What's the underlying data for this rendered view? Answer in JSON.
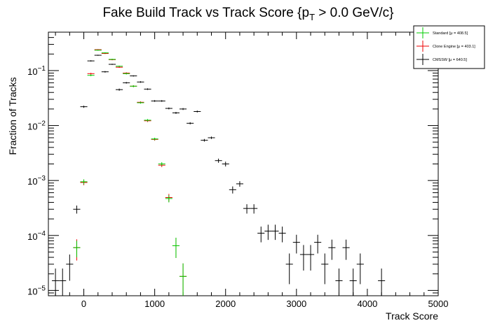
{
  "chart_data": {
    "type": "scatter",
    "title_main": "Fake Build Track vs Track Score {p",
    "title_sub": "T",
    "title_tail": " > 0.0 GeV/c}",
    "xlabel": "Track Score",
    "ylabel": "Fraction of Tracks",
    "xlim": [
      -500,
      5000
    ],
    "ylim": [
      8e-06,
      0.5
    ],
    "yscale": "log",
    "x_ticks": [
      0,
      1000,
      2000,
      3000,
      4000,
      5000
    ],
    "x_tick_labels": [
      "0",
      "1000",
      "2000",
      "3000",
      "4000",
      "5000"
    ],
    "y_ticks": [
      1e-05,
      0.0001,
      0.001,
      0.01,
      0.1
    ],
    "y_tick_labels": [
      [
        "10",
        "−5"
      ],
      [
        "10",
        "−4"
      ],
      [
        "10",
        "−3"
      ],
      [
        "10",
        "−2"
      ],
      [
        "10",
        "−1"
      ]
    ],
    "bin_width": 100,
    "grid": false,
    "legend_position": "top-right",
    "series": [
      {
        "name": "Standard",
        "legend_label": "Standard  [μ = 408.5]",
        "color": "#00cc00",
        "points": [
          [
            -100,
            6e-05,
            2e-05
          ],
          [
            0,
            0.00095,
            0.0001
          ],
          [
            100,
            0.082,
            0.003
          ],
          [
            200,
            0.235,
            0.005
          ],
          [
            300,
            0.21,
            0.005
          ],
          [
            400,
            0.16,
            0.004
          ],
          [
            500,
            0.12,
            0.003
          ],
          [
            600,
            0.088,
            0.003
          ],
          [
            700,
            0.052,
            0.002
          ],
          [
            800,
            0.026,
            0.001
          ],
          [
            900,
            0.0125,
            0.0006
          ],
          [
            1000,
            0.0057,
            0.0003
          ],
          [
            1100,
            0.002,
            0.00015
          ],
          [
            1200,
            0.00047,
            7e-05
          ],
          [
            1300,
            6.5e-05,
            2.6e-05
          ],
          [
            1400,
            1.8e-05,
            1.3e-05
          ]
        ]
      },
      {
        "name": "Clone Engine",
        "legend_label": "Clone Engine  [μ = 403.1]",
        "color": "#ee0000",
        "points": [
          [
            -100,
            6e-05,
            2.5e-05
          ],
          [
            0,
            0.00092,
            0.0001
          ],
          [
            100,
            0.088,
            0.003
          ],
          [
            200,
            0.24,
            0.005
          ],
          [
            300,
            0.205,
            0.005
          ],
          [
            400,
            0.158,
            0.004
          ],
          [
            500,
            0.115,
            0.003
          ],
          [
            600,
            0.09,
            0.003
          ],
          [
            700,
            0.052,
            0.002
          ],
          [
            800,
            0.0265,
            0.001
          ],
          [
            900,
            0.0122,
            0.0006
          ],
          [
            1000,
            0.0056,
            0.0003
          ],
          [
            1100,
            0.0019,
            0.00015
          ],
          [
            1200,
            0.00049,
            8e-05
          ],
          [
            1300,
            6.5e-05,
            2.6e-05
          ],
          [
            1400,
            1.8e-05,
            1.3e-05
          ]
        ]
      },
      {
        "name": "CMSSW",
        "legend_label": "CMSSW  [μ = 640.5]",
        "color": "#000000",
        "points": [
          [
            -400,
            1.5e-05,
            1e-05
          ],
          [
            -300,
            1.5e-05,
            1e-05
          ],
          [
            -200,
            3e-05,
            1.5e-05
          ],
          [
            -100,
            0.0003,
            5e-05
          ],
          [
            0,
            0.022,
            0.001
          ],
          [
            100,
            0.15,
            0.004
          ],
          [
            200,
            0.19,
            0.004
          ],
          [
            300,
            0.095,
            0.003
          ],
          [
            400,
            0.13,
            0.003
          ],
          [
            500,
            0.045,
            0.002
          ],
          [
            600,
            0.06,
            0.002
          ],
          [
            700,
            0.08,
            0.002
          ],
          [
            800,
            0.062,
            0.002
          ],
          [
            900,
            0.046,
            0.0015
          ],
          [
            1000,
            0.028,
            0.001
          ],
          [
            1100,
            0.028,
            0.001
          ],
          [
            1200,
            0.0205,
            0.0008
          ],
          [
            1300,
            0.017,
            0.0007
          ],
          [
            1400,
            0.02,
            0.0008
          ],
          [
            1500,
            0.011,
            0.0005
          ],
          [
            1600,
            0.018,
            0.0007
          ],
          [
            1700,
            0.0054,
            0.0003
          ],
          [
            1800,
            0.006,
            0.0003
          ],
          [
            1900,
            0.0023,
            0.0002
          ],
          [
            2000,
            0.002,
            0.0002
          ],
          [
            2100,
            0.00068,
            0.0001
          ],
          [
            2200,
            0.00087,
            0.0001
          ],
          [
            2300,
            0.00031,
            6e-05
          ],
          [
            2400,
            0.00031,
            6e-05
          ],
          [
            2500,
            0.00011,
            3.5e-05
          ],
          [
            2600,
            0.00012,
            3.7e-05
          ],
          [
            2700,
            0.00012,
            3.7e-05
          ],
          [
            2800,
            0.00011,
            3.5e-05
          ],
          [
            2900,
            3e-05,
            1.7e-05
          ],
          [
            3000,
            7.5e-05,
            2.8e-05
          ],
          [
            3100,
            4.5e-05,
            2.2e-05
          ],
          [
            3200,
            4.5e-05,
            2.2e-05
          ],
          [
            3300,
            7.5e-05,
            2.8e-05
          ],
          [
            3400,
            3e-05,
            1.7e-05
          ],
          [
            3500,
            6e-05,
            2.4e-05
          ],
          [
            3600,
            1.5e-05,
            1e-05
          ],
          [
            3700,
            6e-05,
            2.4e-05
          ],
          [
            3800,
            1.5e-05,
            1e-05
          ],
          [
            3900,
            3e-05,
            1.7e-05
          ],
          [
            4200,
            1.5e-05,
            1e-05
          ]
        ]
      }
    ]
  }
}
